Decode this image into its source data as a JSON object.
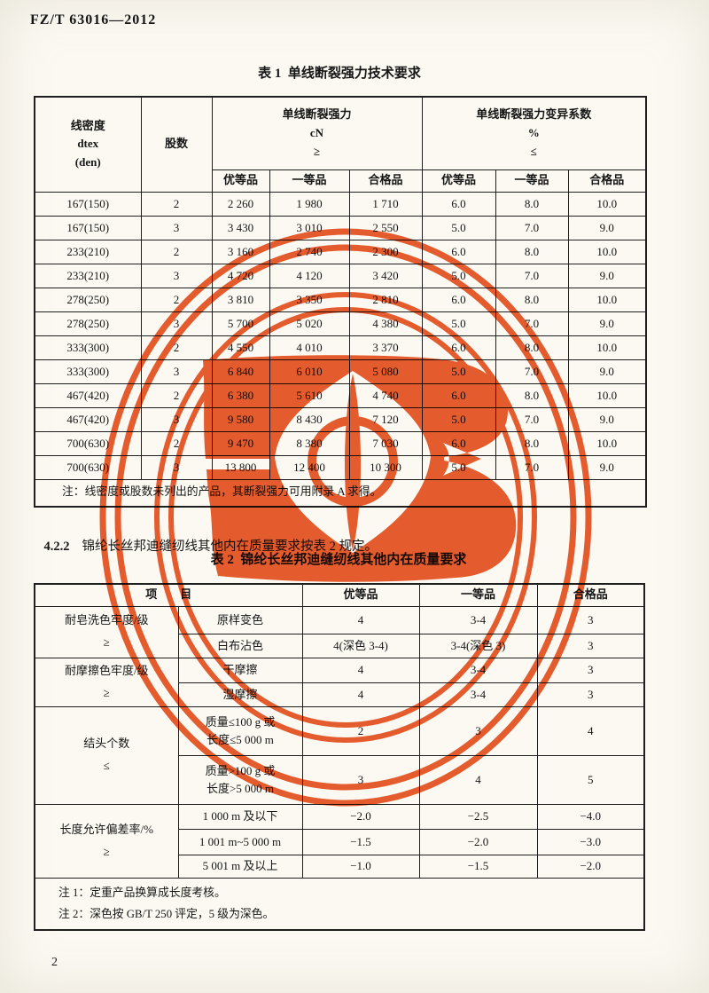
{
  "page": {
    "doc_code": "FZ/T 63016—2012",
    "page_number": "2"
  },
  "section_422": {
    "number": "4.2.2",
    "text": "锦纶长丝邦迪缝纫线其他内在质量要求按表 2 规定。"
  },
  "table1": {
    "title": "表 1  单线断裂强力技术要求",
    "header": {
      "density": "线密度\ndtex\n(den)",
      "ply": "股数",
      "strength_group": "单线断裂强力\ncN\n≥",
      "cv_group": "单线断裂强力变异系数\n%\n≤",
      "sub": [
        "优等品",
        "一等品",
        "合格品",
        "优等品",
        "一等品",
        "合格品"
      ]
    },
    "rows": [
      [
        "167(150)",
        "2",
        "2 260",
        "1 980",
        "1 710",
        "6.0",
        "8.0",
        "10.0"
      ],
      [
        "167(150)",
        "3",
        "3 430",
        "3 010",
        "2 550",
        "5.0",
        "7.0",
        "9.0"
      ],
      [
        "233(210)",
        "2",
        "3 160",
        "2 740",
        "2 300",
        "6.0",
        "8.0",
        "10.0"
      ],
      [
        "233(210)",
        "3",
        "4 720",
        "4 120",
        "3 420",
        "5.0",
        "7.0",
        "9.0"
      ],
      [
        "278(250)",
        "2",
        "3 810",
        "3 350",
        "2 810",
        "6.0",
        "8.0",
        "10.0"
      ],
      [
        "278(250)",
        "3",
        "5 700",
        "5 020",
        "4 380",
        "5.0",
        "7.0",
        "9.0"
      ],
      [
        "333(300)",
        "2",
        "4 550",
        "4 010",
        "3 370",
        "6.0",
        "8.0",
        "10.0"
      ],
      [
        "333(300)",
        "3",
        "6 840",
        "6 010",
        "5 080",
        "5.0",
        "7.0",
        "9.0"
      ],
      [
        "467(420)",
        "2",
        "6 380",
        "5 610",
        "4 740",
        "6.0",
        "8.0",
        "10.0"
      ],
      [
        "467(420)",
        "3",
        "9 580",
        "8 430",
        "7 120",
        "5.0",
        "7.0",
        "9.0"
      ],
      [
        "700(630)",
        "2",
        "9 470",
        "8 380",
        "7 030",
        "6.0",
        "8.0",
        "10.0"
      ],
      [
        "700(630)",
        "3",
        "13 800",
        "12 400",
        "10 300",
        "5.0",
        "7.0",
        "9.0"
      ]
    ],
    "note": "注：线密度或股数未列出的产品，其断裂强力可用附录 A 求得。"
  },
  "table2": {
    "title": "表 2  锦纶长丝邦迪缝纫线其他内在质量要求",
    "header": {
      "item": "项        目",
      "grade1": "优等品",
      "grade2": "一等品",
      "grade3": "合格品"
    },
    "groups": [
      {
        "label": "耐皂洗色牢度/级\n≥",
        "rows": [
          [
            "原样变色",
            "4",
            "3-4",
            "3"
          ],
          [
            "白布沾色",
            "4(深色 3-4)",
            "3-4(深色 3)",
            "3"
          ]
        ]
      },
      {
        "label": "耐摩擦色牢度/级\n≥",
        "rows": [
          [
            "干摩擦",
            "4",
            "3-4",
            "3"
          ],
          [
            "湿摩擦",
            "4",
            "3-4",
            "3"
          ]
        ]
      },
      {
        "label": "结头个数\n≤",
        "rows": [
          [
            "质量≤100 g 或\n长度≤5 000 m",
            "2",
            "3",
            "4"
          ],
          [
            "质量>100 g 或\n长度>5 000 m",
            "3",
            "4",
            "5"
          ]
        ]
      },
      {
        "label": "长度允许偏差率/%\n≥",
        "rows": [
          [
            "1 000 m 及以下",
            "−2.0",
            "−2.5",
            "−4.0"
          ],
          [
            "1 001 m~5 000 m",
            "−1.5",
            "−2.0",
            "−3.0"
          ],
          [
            "5 001 m 及以上",
            "−1.0",
            "−1.5",
            "−2.0"
          ]
        ]
      }
    ],
    "notes": "注 1：定重产品换算成长度考核。\n注 2：深色按 GB/T 250 评定，5 级为深色。"
  },
  "stamp": {
    "color": "#e7511f"
  }
}
